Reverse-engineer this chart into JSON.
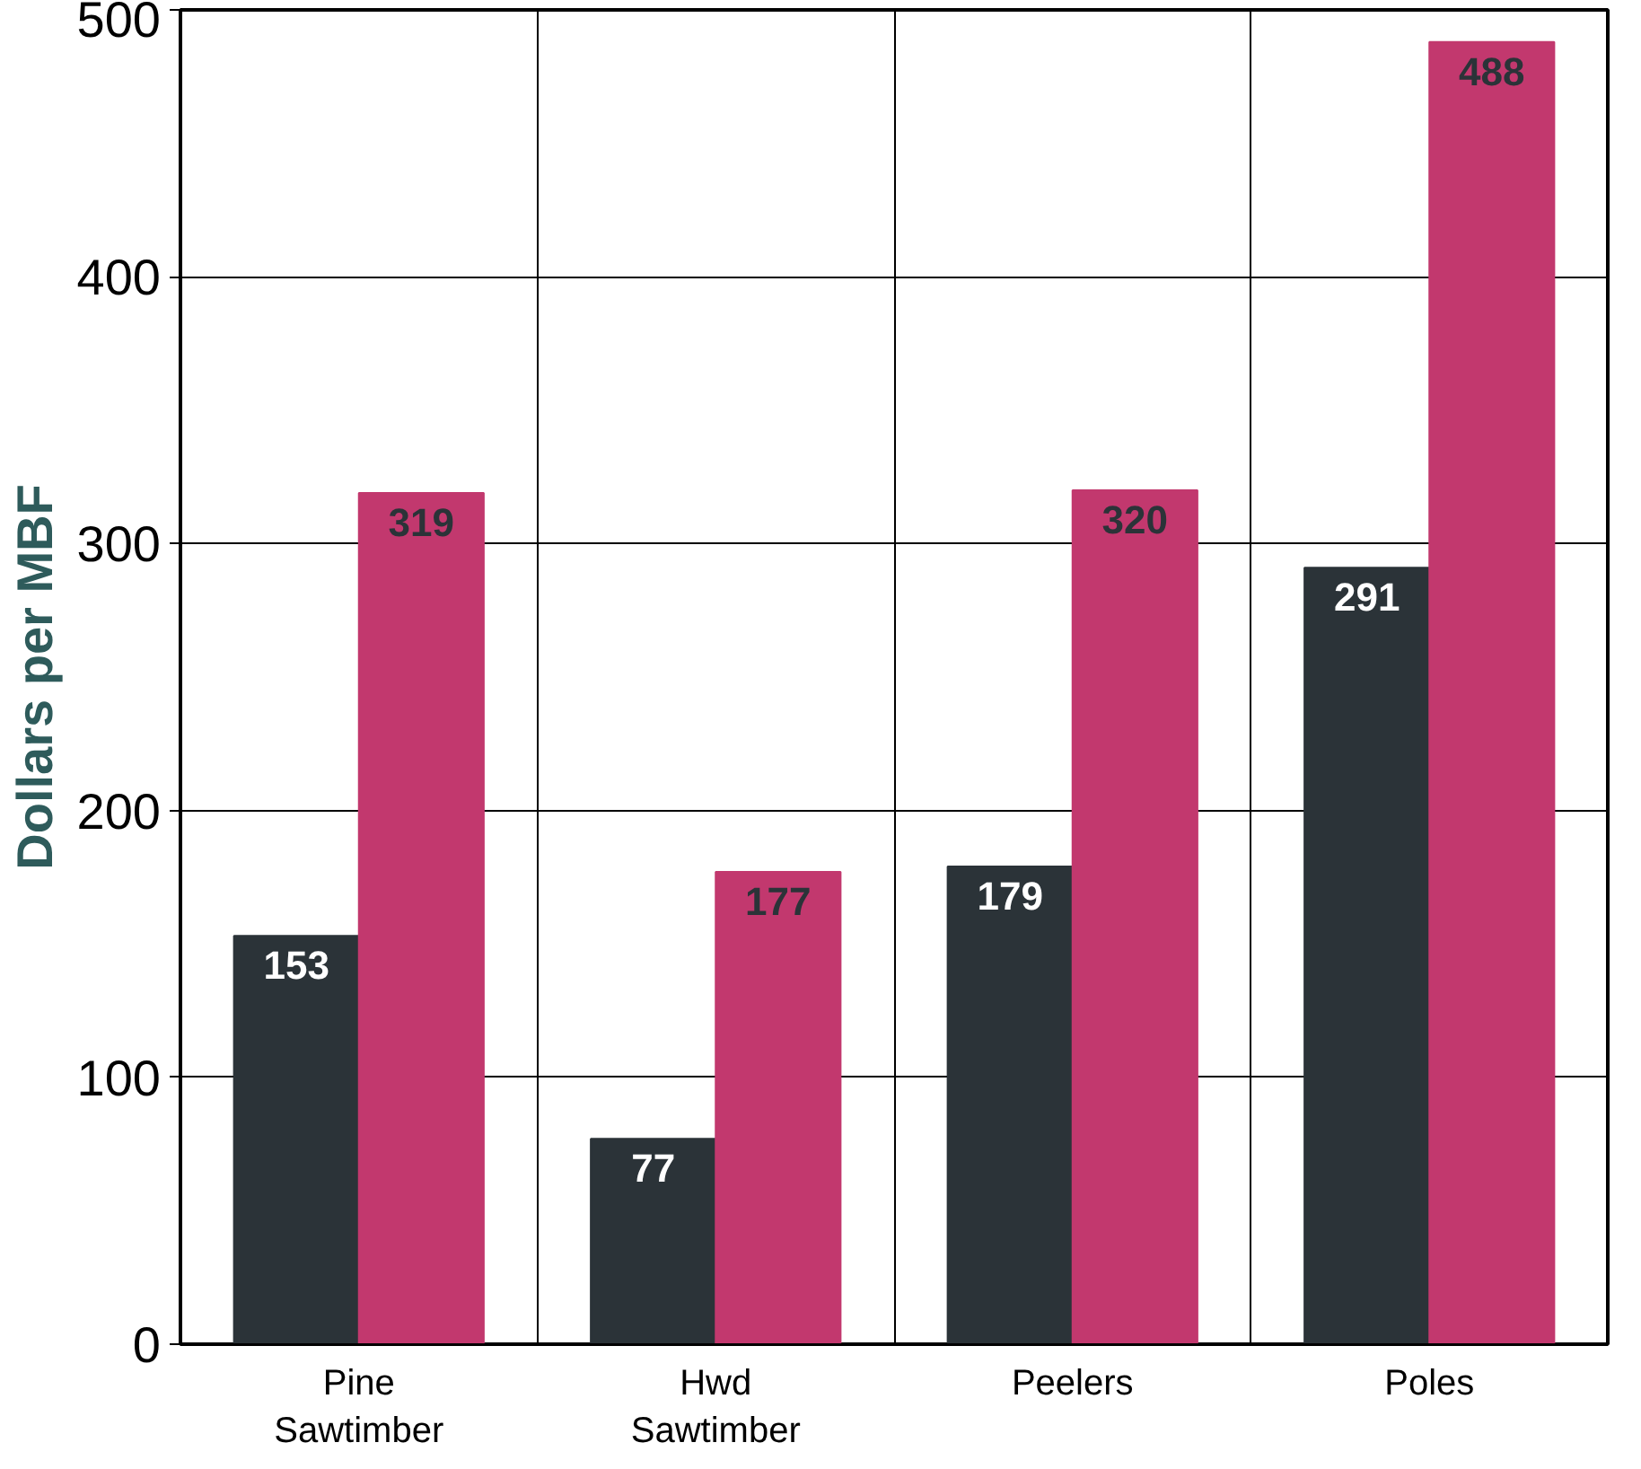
{
  "chart_data": {
    "type": "bar",
    "ylabel": "Dollars per MBF",
    "categories": [
      "Pine\nSawtimber",
      "Hwd\nSawtimber",
      "Peelers",
      "Poles"
    ],
    "series": [
      {
        "color": "#2b3338",
        "values": [
          153,
          77,
          179,
          291
        ]
      },
      {
        "color": "#c2386e",
        "values": [
          319,
          177,
          320,
          488
        ]
      }
    ],
    "ylim": [
      0,
      500
    ],
    "yticks": [
      0,
      100,
      200,
      300,
      400,
      500
    ],
    "grid": true,
    "data_labels": true
  }
}
